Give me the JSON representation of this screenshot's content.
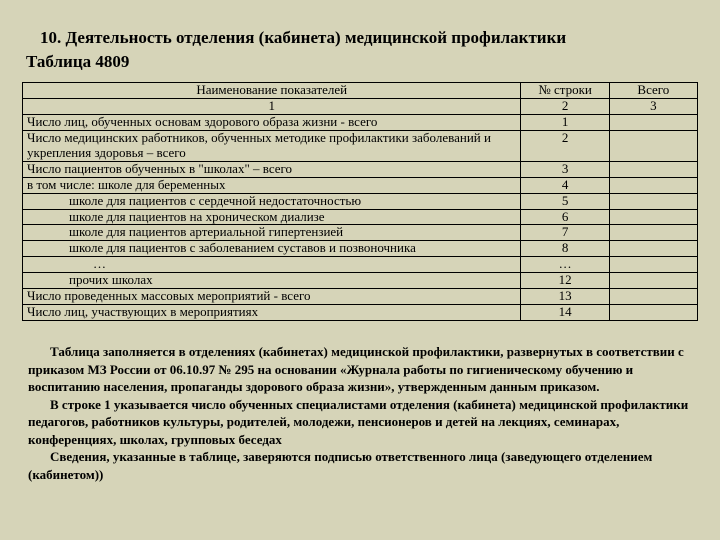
{
  "background_color": "#d6d4b8",
  "text_color": "#000000",
  "border_color": "#000000",
  "title": "10. Деятельность отделения (кабинета) медицинской профилактики",
  "subtitle": "Таблица 4809",
  "header": {
    "name": "Наименование показателей",
    "line": "№ строки",
    "total": "Всего"
  },
  "numhdr": {
    "c1": "1",
    "c2": "2",
    "c3": "3"
  },
  "rows": [
    {
      "name": "Число лиц, обученных основам здорового образа жизни - всего",
      "line": "1",
      "indent": "indent0"
    },
    {
      "name": "Число медицинских работников, обученных методике профилактики заболеваний и укрепления здоровья – всего",
      "line": "2",
      "indent": "indent0"
    },
    {
      "name": "Число пациентов обученных в \"школах\" – всего",
      "line": "3",
      "indent": "indent0"
    },
    {
      "name": "в том числе: школе для беременных",
      "line": "4",
      "indent": "indent0"
    },
    {
      "name": "школе для пациентов с сердечной недостаточностью",
      "line": "5",
      "indent": "indent1"
    },
    {
      "name": "школе для пациентов на хроническом диализе",
      "line": "6",
      "indent": "indent1"
    },
    {
      "name": "школе для пациентов артериальной гипертензией",
      "line": "7",
      "indent": "indent1"
    },
    {
      "name": "школе для пациентов с заболеванием суставов и позвоночника",
      "line": "8",
      "indent": "indent1"
    },
    {
      "name": "…",
      "line": "…",
      "indent": "indent-ellipsis"
    },
    {
      "name": "прочих школах",
      "line": "12",
      "indent": "indent1"
    },
    {
      "name": "Число проведенных массовых мероприятий - всего",
      "line": "13",
      "indent": "indent0"
    },
    {
      "name": "Число лиц, участвующих в мероприятиях",
      "line": "14",
      "indent": "indent0"
    }
  ],
  "footnote": {
    "p1": "Таблица заполняется в отделениях (кабинетах) медицинской профилактики, развернутых в соответствии с приказом МЗ России  от 06.10.97 № 295 на основании «Журнала работы по гигиеническому обучению и воспитанию населения, пропаганды здорового образа жизни», утвержденным данным приказом.",
    "p2": "В строке 1 указывается число обученных специалистами отделения (кабинета) медицинской профилактики педагогов, работников культуры, родителей, молодежи, пенсионеров и детей на лекциях, семинарах, конференциях, школах, групповых беседах",
    "p3": "Сведения, указанные в таблице, заверяются подписью ответственного лица (заведующего отделением (кабинетом))"
  }
}
